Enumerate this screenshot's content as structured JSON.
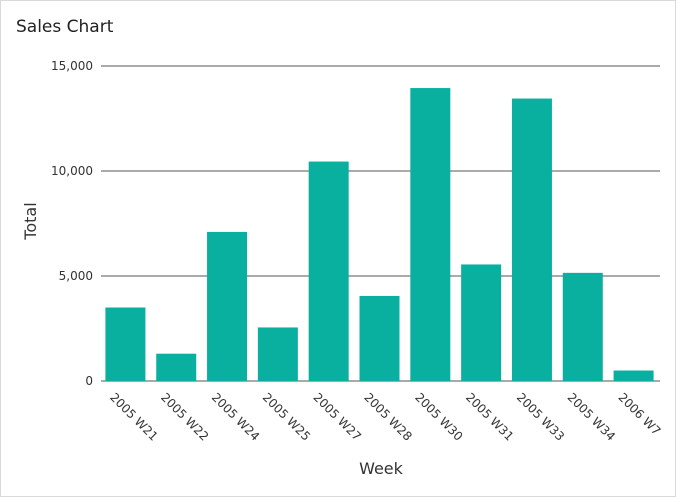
{
  "chart_data": {
    "type": "bar",
    "title": "Sales Chart",
    "xlabel": "Week",
    "ylabel": "Total",
    "categories": [
      "2005 W21",
      "2005 W22",
      "2005 W24",
      "2005 W25",
      "2005 W27",
      "2005 W28",
      "2005 W30",
      "2005 W31",
      "2005 W33",
      "2005 W34",
      "2006 W7"
    ],
    "values": [
      3500,
      1300,
      7100,
      2550,
      10450,
      4050,
      13950,
      5550,
      13450,
      5150,
      500
    ],
    "ylim": [
      0,
      15000
    ],
    "yticks": [
      0,
      5000,
      10000,
      15000
    ],
    "ytick_labels": [
      "0",
      "5,000",
      "10,000",
      "15,000"
    ],
    "grid": true,
    "bar_color": "#0ab09f",
    "grid_color": "#555555"
  }
}
